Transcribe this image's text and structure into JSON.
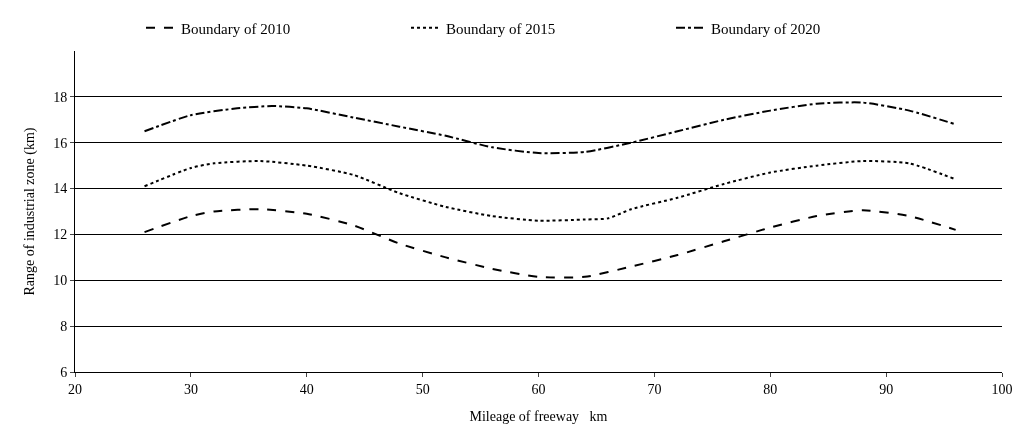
{
  "chart_data": {
    "type": "line",
    "xlabel": "Mileage of freeway   km",
    "ylabel": "Range of industrial zone (km)",
    "xlim": [
      20,
      100
    ],
    "xticks": [
      20,
      30,
      40,
      50,
      60,
      70,
      80,
      90,
      100
    ],
    "ylim": [
      6,
      20
    ],
    "yticks": [
      6,
      8,
      10,
      12,
      14,
      16,
      18
    ],
    "grid": "y",
    "legend": "top",
    "marker": "none",
    "series": [
      {
        "name": "Boundary of 2010",
        "color": "#000000",
        "line_style": "dashed",
        "x": [
          26,
          30,
          32,
          36,
          40,
          44,
          48,
          52,
          56,
          60,
          64,
          68,
          72,
          76,
          80,
          84,
          88,
          92,
          96
        ],
        "values": [
          12.1,
          12.8,
          13.0,
          13.1,
          12.9,
          12.4,
          11.6,
          11.0,
          10.5,
          10.15,
          10.15,
          10.6,
          11.1,
          11.7,
          12.3,
          12.8,
          13.05,
          12.8,
          12.2
        ]
      },
      {
        "name": "Boundary of 2015",
        "color": "#000000",
        "line_style": "dotted",
        "x": [
          26,
          30,
          32,
          36,
          40,
          44,
          48,
          52,
          56,
          60,
          64,
          66,
          68,
          72,
          76,
          80,
          84,
          88,
          92,
          96
        ],
        "values": [
          14.1,
          14.9,
          15.1,
          15.2,
          15.0,
          14.6,
          13.8,
          13.2,
          12.8,
          12.6,
          12.65,
          12.7,
          13.1,
          13.6,
          14.2,
          14.7,
          15.0,
          15.2,
          15.1,
          14.4
        ]
      },
      {
        "name": "Boundary of 2020",
        "color": "#000000",
        "line_style": "dashdot",
        "x": [
          26,
          30,
          34,
          37,
          40,
          44,
          48,
          52,
          56,
          60,
          64,
          68,
          72,
          76,
          80,
          84,
          88,
          92,
          96
        ],
        "values": [
          16.5,
          17.2,
          17.5,
          17.6,
          17.5,
          17.1,
          16.7,
          16.3,
          15.8,
          15.55,
          15.6,
          16.0,
          16.5,
          17.0,
          17.4,
          17.7,
          17.75,
          17.4,
          16.8
        ]
      }
    ]
  }
}
